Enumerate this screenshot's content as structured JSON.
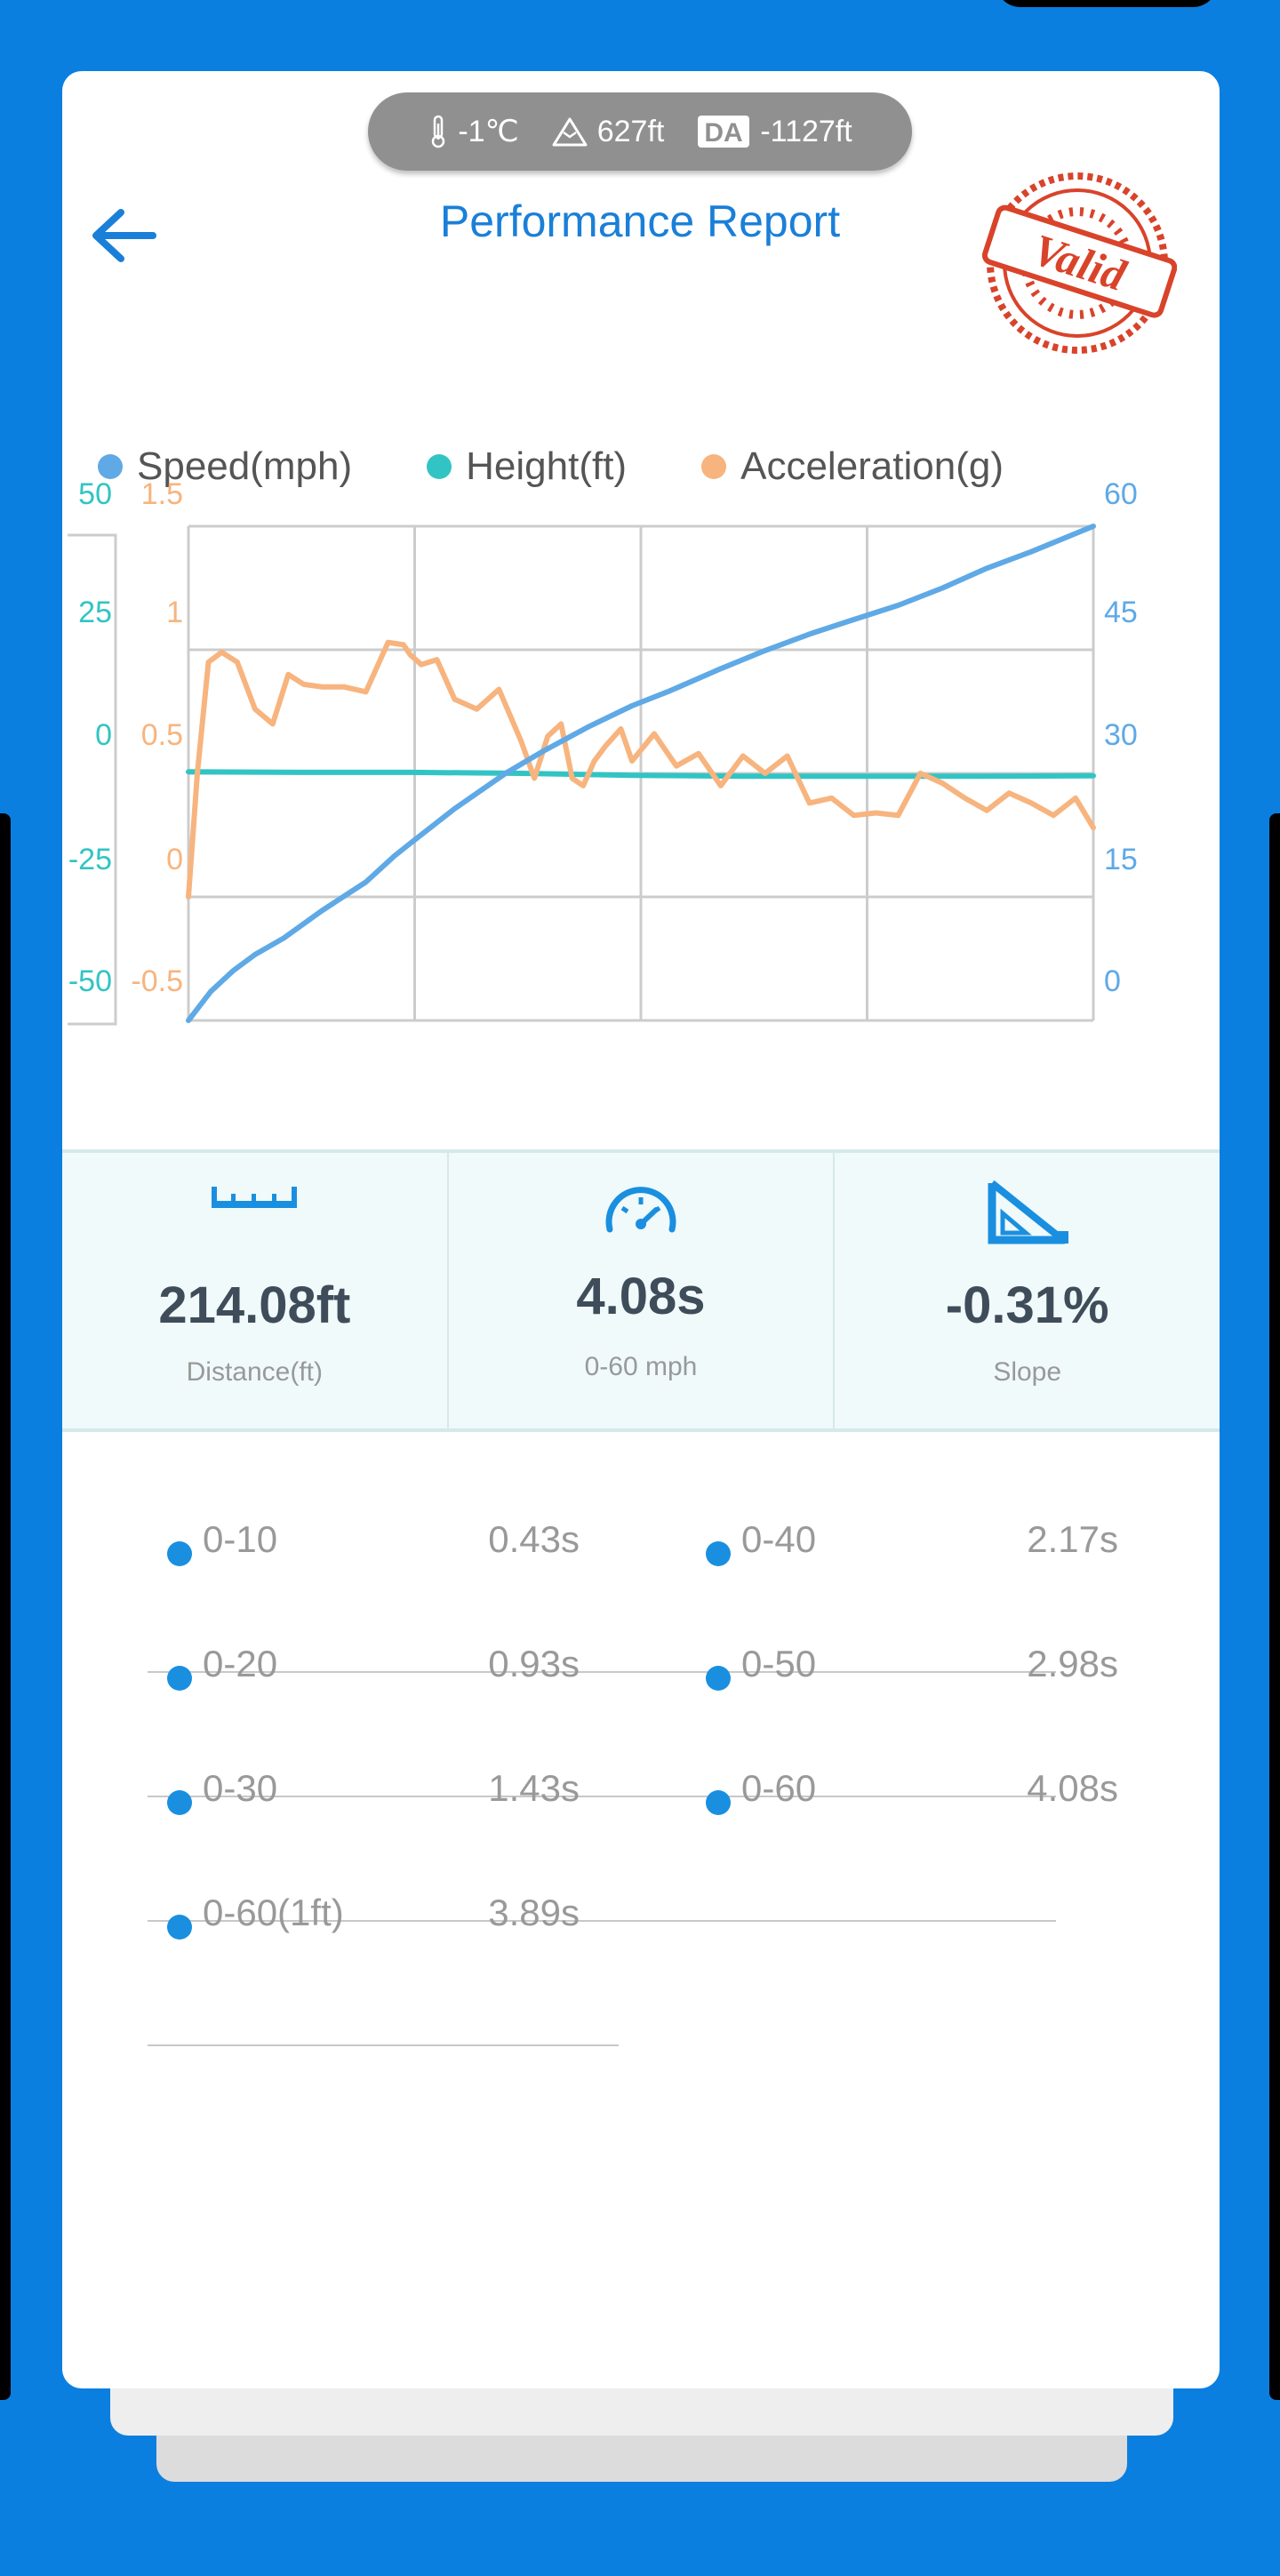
{
  "env": {
    "temperature": "-1℃",
    "altitude": "627ft",
    "density_badge": "DA",
    "density_altitude": "-1127ft"
  },
  "header": {
    "title": "Performance Report",
    "stamp_text": "Valid"
  },
  "legend": [
    {
      "label": "Speed(mph)",
      "color": "#5fa9e6"
    },
    {
      "label": "Height(ft)",
      "color": "#32c4c4"
    },
    {
      "label": "Acceleration(g)",
      "color": "#f7b47e"
    }
  ],
  "chart_data": {
    "type": "line",
    "x_range": [
      0,
      4.08
    ],
    "grid": true,
    "axes": {
      "height": {
        "ticks": [
          "50",
          "25",
          "0",
          "-25",
          "-50"
        ],
        "range": [
          -50,
          50
        ],
        "color": "#32c4c4"
      },
      "acceleration": {
        "ticks": [
          "1.5",
          "1",
          "0.5",
          "0",
          "-0.5"
        ],
        "range": [
          -0.5,
          1.5
        ],
        "color": "#f7b47e"
      },
      "speed": {
        "ticks": [
          "60",
          "45",
          "30",
          "15",
          "0"
        ],
        "range": [
          0,
          60
        ],
        "color": "#5fa9e6"
      }
    },
    "series": [
      {
        "name": "Speed(mph)",
        "axis": "speed",
        "color": "#5fa9e6",
        "x": [
          0,
          0.1,
          0.2,
          0.3,
          0.43,
          0.6,
          0.8,
          0.93,
          1.0,
          1.2,
          1.43,
          1.6,
          1.8,
          2.0,
          2.17,
          2.4,
          2.6,
          2.8,
          2.98,
          3.2,
          3.4,
          3.6,
          3.8,
          4.08
        ],
        "y": [
          0,
          3.5,
          6,
          8,
          10,
          13.3,
          16.8,
          20,
          21.5,
          25.7,
          30,
          32.7,
          35.6,
          38.2,
          40,
          42.7,
          44.9,
          46.9,
          48.5,
          50.4,
          52.5,
          54.9,
          56.9,
          60
        ]
      },
      {
        "name": "Height(ft)",
        "axis": "height",
        "color": "#32c4c4",
        "x": [
          0,
          0.5,
          1.0,
          1.5,
          2.0,
          2.5,
          3.0,
          3.5,
          4.08
        ],
        "y": [
          0.3,
          0.2,
          0.2,
          0,
          -0.4,
          -0.6,
          -0.6,
          -0.6,
          -0.5
        ]
      },
      {
        "name": "Acceleration(g)",
        "axis": "acceleration",
        "color": "#f7b47e",
        "x": [
          0,
          0.04,
          0.09,
          0.15,
          0.22,
          0.3,
          0.38,
          0.45,
          0.52,
          0.6,
          0.7,
          0.8,
          0.9,
          0.97,
          1.0,
          1.05,
          1.12,
          1.2,
          1.3,
          1.4,
          1.5,
          1.56,
          1.62,
          1.68,
          1.73,
          1.78,
          1.83,
          1.88,
          1.95,
          2.0,
          2.1,
          2.2,
          2.3,
          2.4,
          2.5,
          2.6,
          2.7,
          2.8,
          2.9,
          3.0,
          3.1,
          3.2,
          3.3,
          3.4,
          3.5,
          3.6,
          3.7,
          3.8,
          3.9,
          4.0,
          4.08
        ],
        "y": [
          0,
          0.5,
          0.95,
          0.99,
          0.95,
          0.76,
          0.7,
          0.9,
          0.86,
          0.85,
          0.85,
          0.83,
          1.03,
          1.02,
          0.98,
          0.94,
          0.96,
          0.8,
          0.76,
          0.84,
          0.63,
          0.48,
          0.65,
          0.7,
          0.48,
          0.45,
          0.55,
          0.61,
          0.68,
          0.55,
          0.66,
          0.53,
          0.58,
          0.45,
          0.57,
          0.5,
          0.57,
          0.38,
          0.4,
          0.33,
          0.34,
          0.33,
          0.5,
          0.46,
          0.4,
          0.35,
          0.42,
          0.38,
          0.33,
          0.4,
          0.28
        ]
      }
    ]
  },
  "stats": [
    {
      "value": "214.08ft",
      "label": "Distance(ft)",
      "icon": "ruler-icon"
    },
    {
      "value": "4.08s",
      "label": "0-60 mph",
      "icon": "speedometer-icon"
    },
    {
      "value": "-0.31%",
      "label": "Slope",
      "icon": "slope-icon"
    }
  ],
  "splits": [
    {
      "name": "0-10",
      "time": "0.43s"
    },
    {
      "name": "0-40",
      "time": "2.17s"
    },
    {
      "name": "0-20",
      "time": "0.93s"
    },
    {
      "name": "0-50",
      "time": "2.98s"
    },
    {
      "name": "0-30",
      "time": "1.43s"
    },
    {
      "name": "0-60",
      "time": "4.08s"
    },
    {
      "name": "0-60(1ft)",
      "time": "3.89s"
    }
  ]
}
